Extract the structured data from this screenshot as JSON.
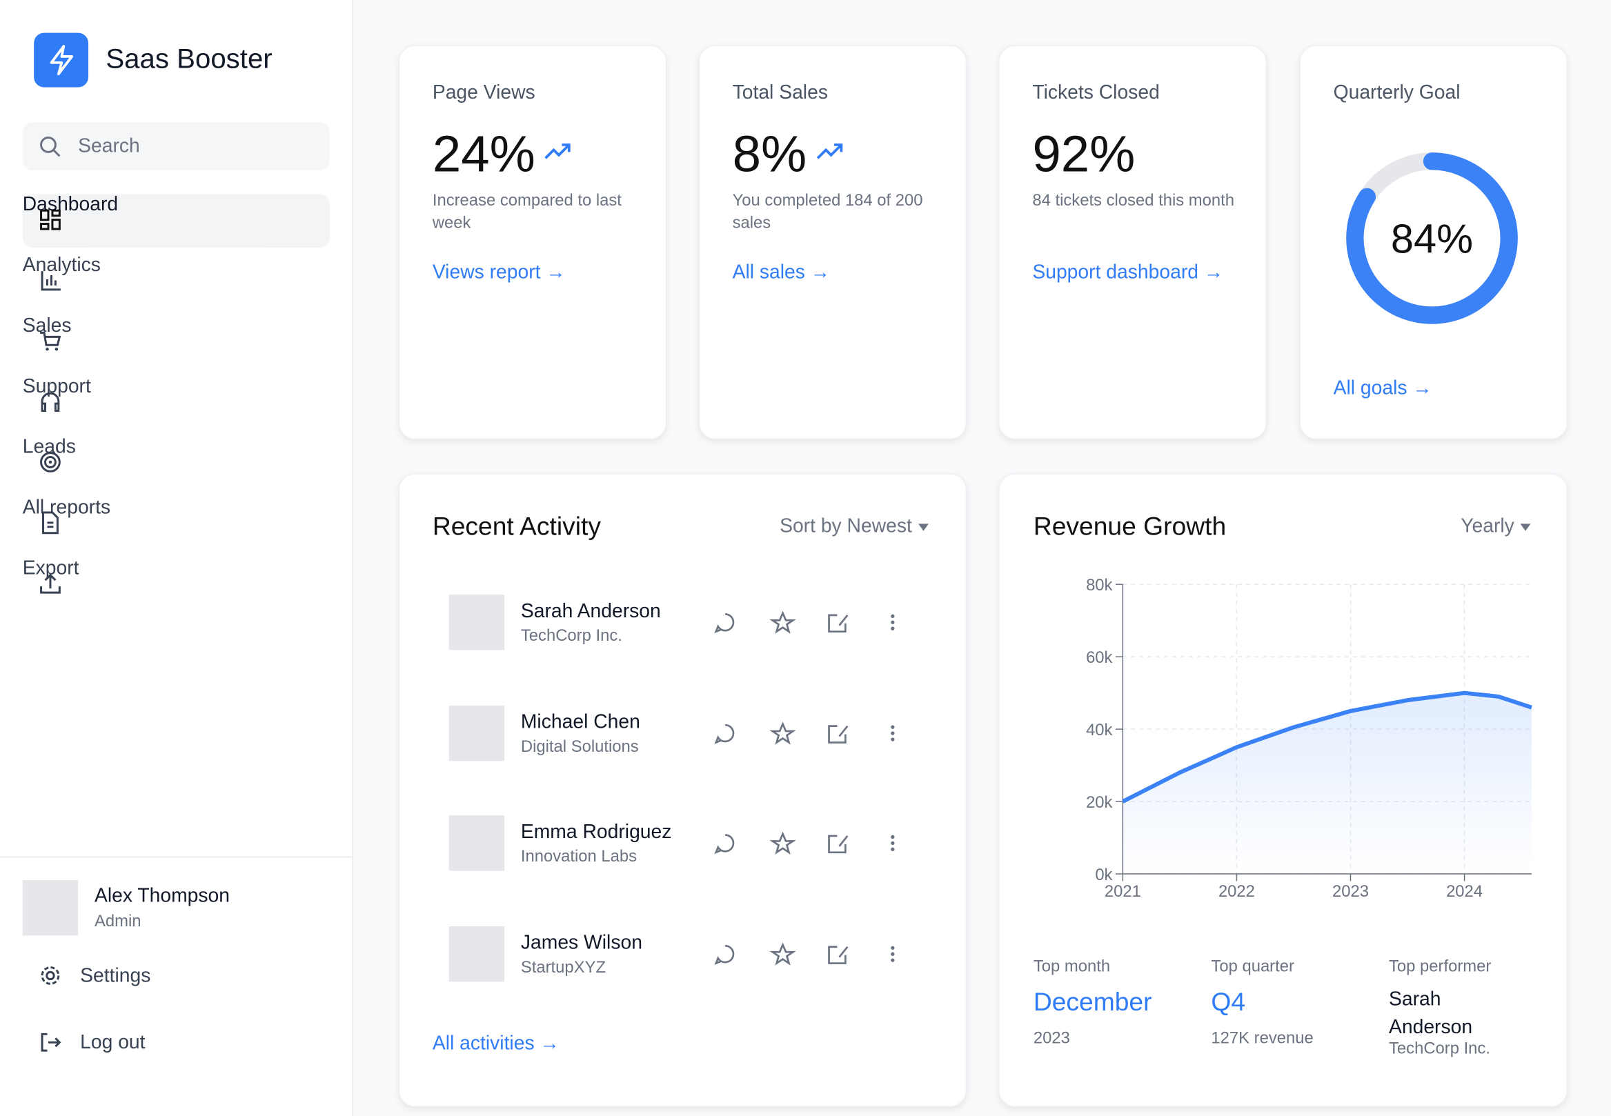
{
  "brand": "Saas Booster",
  "search": "Search",
  "nav": [
    "Dashboard",
    "Analytics",
    "Sales",
    "Support",
    "Leads",
    "All reports",
    "Export"
  ],
  "user": {
    "name": "Alex Thompson",
    "role": "Admin"
  },
  "footer_nav": [
    "Settings",
    "Log out"
  ],
  "stats": [
    {
      "title": "Page Views",
      "value": "24%",
      "note": "Increase compared to last week",
      "link": "Views report →"
    },
    {
      "title": "Total Sales",
      "value": "8%",
      "note": "You completed 184 of 200 sales",
      "link": "All sales →"
    },
    {
      "title": "Tickets Closed",
      "value": "92%",
      "note": "84 tickets closed this month",
      "link": "Support dashboard →"
    }
  ],
  "goal": {
    "title": "Quarterly Goal",
    "value": 84,
    "label": "84%",
    "link": "All goals →"
  },
  "activity": {
    "title": "Recent Activity",
    "sort": "Sort by Newest",
    "items": [
      {
        "name": "Sarah Anderson",
        "company": "TechCorp Inc."
      },
      {
        "name": "Michael Chen",
        "company": "Digital Solutions"
      },
      {
        "name": "Emma Rodriguez",
        "company": "Innovation Labs"
      },
      {
        "name": "James Wilson",
        "company": "StartupXYZ"
      }
    ],
    "link": "All activities →"
  },
  "revenue": {
    "title": "Revenue Growth",
    "period": "Yearly",
    "chart_data": {
      "type": "line",
      "x": [
        2021,
        2021.5,
        2022,
        2022.5,
        2023,
        2023.5,
        2024,
        2024.3,
        2024.59
      ],
      "values": [
        20000,
        28000,
        35000,
        40500,
        45000,
        48000,
        50000,
        49000,
        46000
      ],
      "color": "#3b82f6",
      "xlim": [
        2021,
        2024.59
      ],
      "xticks": [
        2021,
        2022,
        2023,
        2024
      ],
      "ylim": [
        0,
        80000
      ],
      "yticks": [
        {
          "value": 0,
          "label": "0k"
        },
        {
          "value": 20000,
          "label": "20k"
        },
        {
          "value": 40000,
          "label": "40k"
        },
        {
          "value": 60000,
          "label": "60k"
        },
        {
          "value": 80000,
          "label": "80k"
        }
      ],
      "grid": true
    },
    "highlights": [
      {
        "label": "Top month",
        "value": "December",
        "note": "2023"
      },
      {
        "label": "Top quarter",
        "value": "Q4",
        "note": "127K revenue"
      },
      {
        "label": "Top performer",
        "value": "Sarah Anderson",
        "note": "TechCorp Inc."
      }
    ]
  }
}
